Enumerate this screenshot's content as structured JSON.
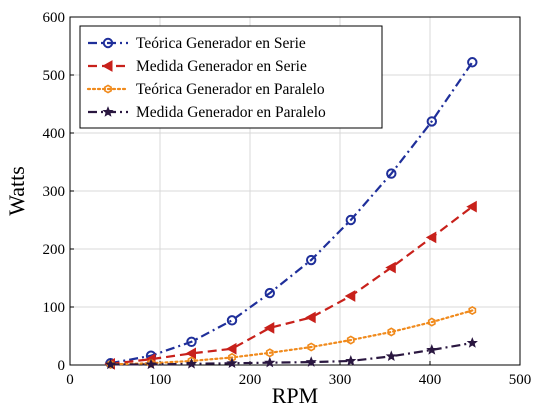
{
  "chart_data": {
    "type": "line",
    "xlabel": "RPM",
    "ylabel": "Watts",
    "xlim": [
      0,
      500
    ],
    "ylim": [
      0,
      600
    ],
    "xticks": [
      0,
      100,
      200,
      300,
      400,
      500
    ],
    "yticks": [
      0,
      100,
      200,
      300,
      400,
      500,
      600
    ],
    "grid": true,
    "legend_position": "top-left",
    "series": [
      {
        "name": "Teórica Generador en Serie",
        "color": "#1f2f9a",
        "line_style": "dash-dot",
        "marker": "circle",
        "x": [
          45,
          90,
          135,
          180,
          222,
          268,
          312,
          357,
          402,
          447
        ],
        "y": [
          3,
          16,
          40,
          77,
          124,
          181,
          250,
          330,
          420,
          522
        ]
      },
      {
        "name": "Medida Generador en Serie",
        "color": "#c8211b",
        "line_style": "dashed",
        "marker": "triangle-left",
        "x": [
          45,
          90,
          135,
          180,
          222,
          268,
          312,
          357,
          402,
          447
        ],
        "y": [
          2,
          10,
          20,
          28,
          64,
          82,
          119,
          168,
          220,
          273
        ]
      },
      {
        "name": "Teórica Generador en Paralelo",
        "color": "#f08a1c",
        "line_style": "dotted",
        "marker": "hexagon",
        "x": [
          45,
          90,
          135,
          180,
          222,
          268,
          312,
          357,
          402,
          447
        ],
        "y": [
          1,
          3,
          7,
          13,
          21,
          31,
          43,
          57,
          74,
          94
        ]
      },
      {
        "name": "Medida Generador en Paralelo",
        "color": "#2a1740",
        "line_style": "dash-dot",
        "marker": "star",
        "x": [
          45,
          90,
          135,
          180,
          222,
          268,
          312,
          357,
          402,
          447
        ],
        "y": [
          1,
          1,
          2,
          3,
          4,
          5,
          7,
          15,
          26,
          38
        ]
      }
    ]
  }
}
